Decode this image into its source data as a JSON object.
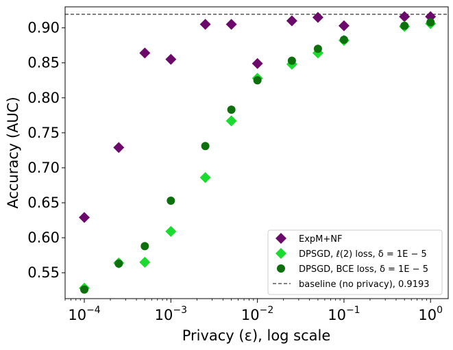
{
  "chart_data": {
    "type": "scatter",
    "xscale": "log",
    "xlabel": "Privacy (ε), log scale",
    "ylabel": "Accuracy (AUC)",
    "xlim": [
      6e-05,
      1.6
    ],
    "ylim": [
      0.513,
      0.93
    ],
    "x_ticks": [
      {
        "value": 0.0001,
        "base": "10",
        "exp": "−4"
      },
      {
        "value": 0.001,
        "base": "10",
        "exp": "−3"
      },
      {
        "value": 0.01,
        "base": "10",
        "exp": "−2"
      },
      {
        "value": 0.1,
        "base": "10",
        "exp": "−1"
      },
      {
        "value": 1,
        "base": "10",
        "exp": "0"
      }
    ],
    "y_ticks": [
      {
        "value": 0.55,
        "label": "0.55"
      },
      {
        "value": 0.6,
        "label": "0.60"
      },
      {
        "value": 0.65,
        "label": "0.65"
      },
      {
        "value": 0.7,
        "label": "0.70"
      },
      {
        "value": 0.75,
        "label": "0.75"
      },
      {
        "value": 0.8,
        "label": "0.80"
      },
      {
        "value": 0.85,
        "label": "0.85"
      },
      {
        "value": 0.9,
        "label": "0.90"
      }
    ],
    "series": [
      {
        "name": "ExpM+NF",
        "marker": "diamond",
        "color": "#6b0a6b",
        "x": [
          0.0001,
          0.00025,
          0.0005,
          0.001,
          0.0025,
          0.005,
          0.01,
          0.025,
          0.05,
          0.1,
          0.5,
          1.0
        ],
        "values": [
          0.629,
          0.729,
          0.864,
          0.855,
          0.905,
          0.905,
          0.849,
          0.91,
          0.915,
          0.903,
          0.916,
          0.916
        ]
      },
      {
        "name": "DPSGD, ℓ(2) loss, δ = 1E − 5",
        "marker": "diamond",
        "color": "#1bdb2f",
        "x": [
          0.0001,
          0.00025,
          0.0005,
          0.001,
          0.0025,
          0.005,
          0.01,
          0.025,
          0.05,
          0.1,
          0.5,
          1.0
        ],
        "values": [
          0.528,
          0.564,
          0.565,
          0.609,
          0.686,
          0.767,
          0.828,
          0.848,
          0.864,
          0.882,
          0.902,
          0.906
        ]
      },
      {
        "name": "DPSGD, BCE loss, δ = 1E − 5",
        "marker": "circle",
        "color": "#0d700d",
        "x": [
          0.0001,
          0.00025,
          0.0005,
          0.001,
          0.0025,
          0.005,
          0.01,
          0.025,
          0.05,
          0.1,
          0.5,
          1.0
        ],
        "values": [
          0.526,
          0.563,
          0.588,
          0.653,
          0.731,
          0.783,
          0.825,
          0.853,
          0.87,
          0.883,
          0.903,
          0.908
        ]
      }
    ],
    "baseline": {
      "name": "baseline (no privacy), 0.9193",
      "value": 0.9193,
      "style": "dashed",
      "color": "#000000"
    },
    "legend": {
      "placement": "lower-right"
    }
  }
}
